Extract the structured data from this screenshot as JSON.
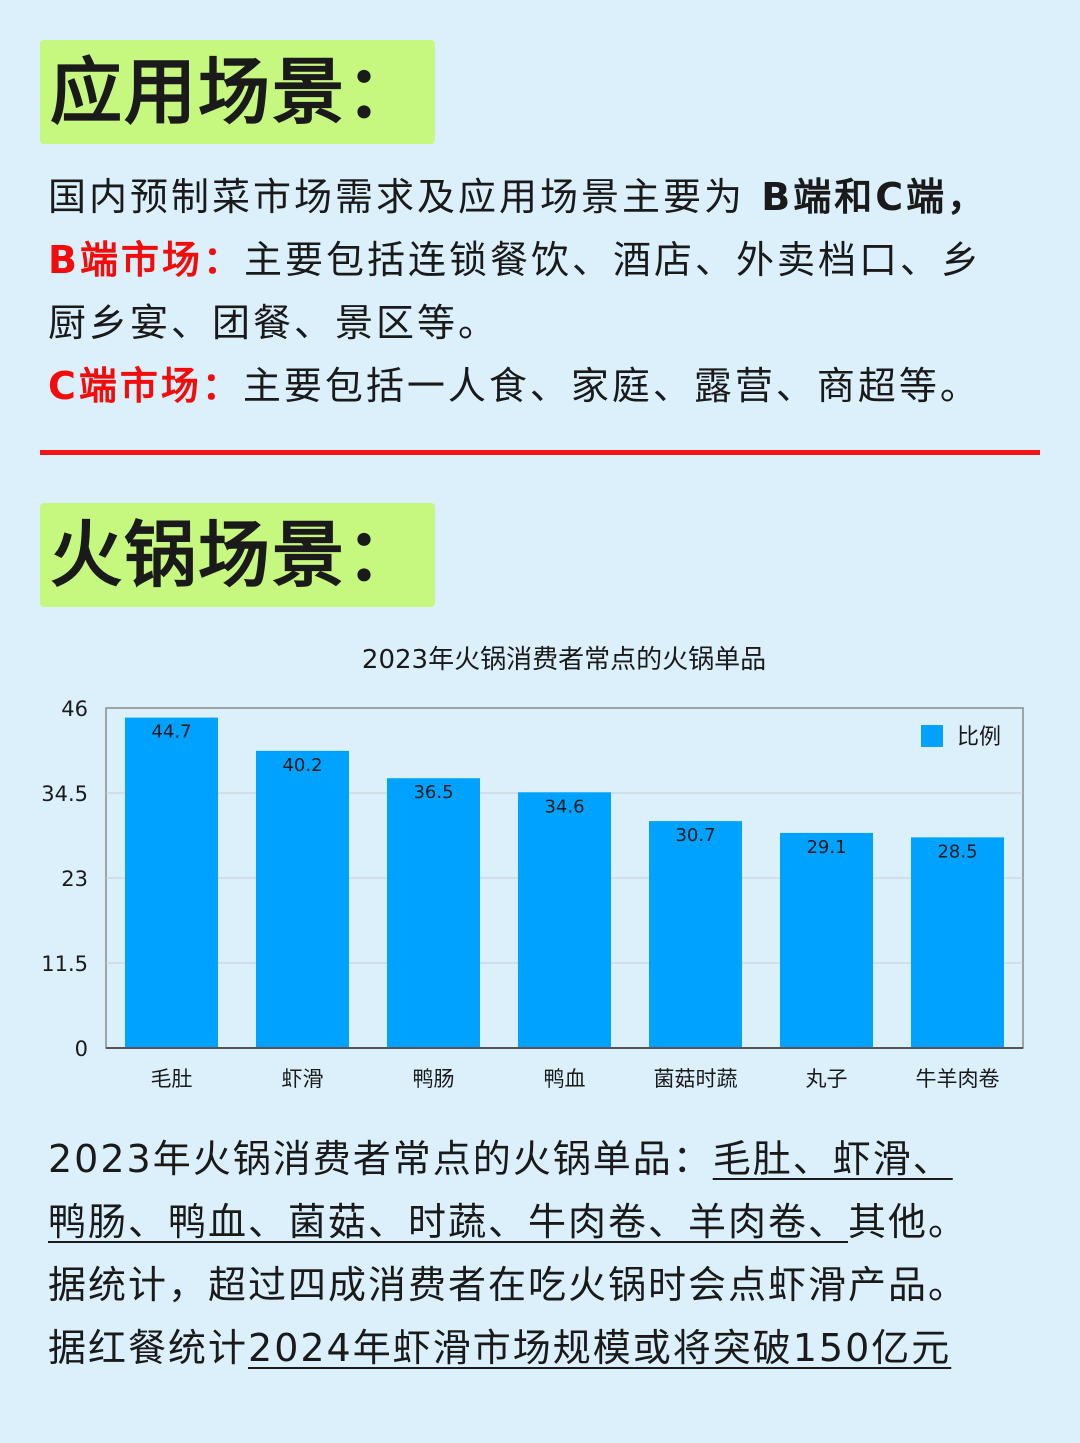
{
  "section1": {
    "heading": "应用场景：",
    "intro_text": "国内预制菜市场需求及应用场景主要为",
    "intro_bold": " B端和C端，",
    "b_label": "B端市场：",
    "b_text_line1": "主要包括连锁餐饮、酒店、外卖档口、乡",
    "b_text_line2": "厨乡宴、团餐、景区等。",
    "c_label": "C端市场：",
    "c_text": "主要包括一人食、家庭、露营、商超等。"
  },
  "section2": {
    "heading": "火锅场景："
  },
  "chart_data": {
    "type": "bar",
    "title": "2023年火锅消费者常点的火锅单品",
    "categories": [
      "毛肚",
      "虾滑",
      "鸭肠",
      "鸭血",
      "菌菇时蔬",
      "丸子",
      "牛羊肉卷"
    ],
    "series": [
      {
        "name": "比例",
        "values": [
          44.7,
          40.2,
          36.5,
          34.6,
          30.7,
          29.1,
          28.5
        ]
      }
    ],
    "yticks": [
      "0",
      "11.5",
      "23",
      "34.5",
      "46"
    ],
    "ylim": [
      0,
      46
    ],
    "xlabel": "",
    "ylabel": "",
    "grid": true,
    "legend_position": "top-right",
    "bar_color": "#00a2ff"
  },
  "summary": {
    "line1_prefix": "2023年火锅消费者常点的火锅单品：",
    "line1_ul": "毛肚、虾滑、",
    "line2_ul": "鸭肠、鸭血、菌菇、时蔬、牛肉卷、羊肉卷、",
    "line2_suffix": "其他。",
    "line3": "据统计，超过四成消费者在吃火锅时会点虾滑产品。",
    "line4_prefix": "据红餐统计",
    "line4_ul": "2024年虾滑市场规模或将突破150亿元"
  },
  "colors": {
    "background": "#dcf0fb",
    "tag": "#c6f77e",
    "accent_red": "#f21414",
    "bar": "#00a2ff"
  }
}
